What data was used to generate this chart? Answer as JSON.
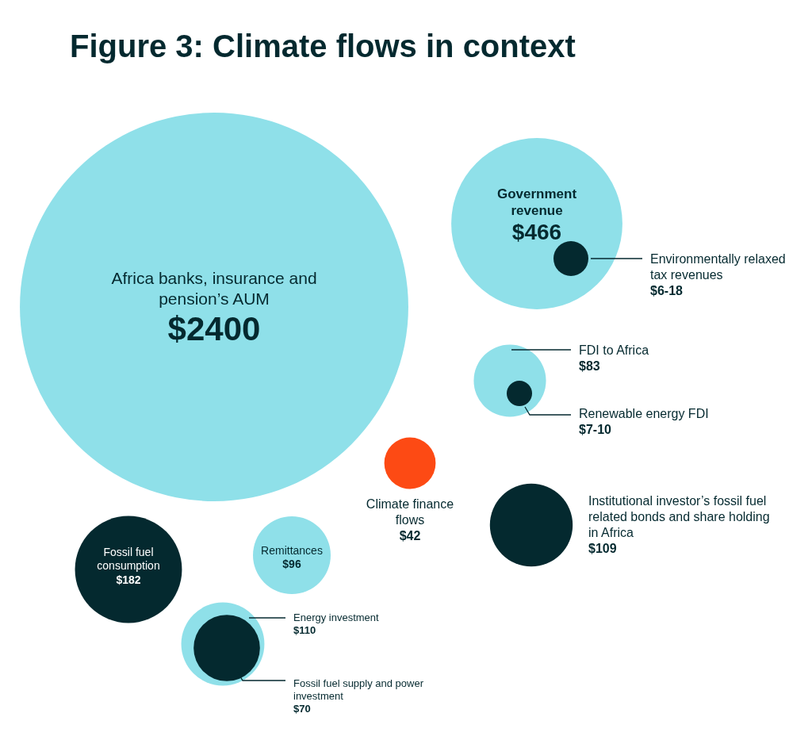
{
  "chart_data": {
    "type": "other",
    "title": "Figure 3: Climate flows in context",
    "categories": [
      "Africa banks, insurance and pension’s AUM",
      "Government revenue",
      "Environmentally relaxed tax revenues",
      "FDI to Africa",
      "Renewable energy FDI",
      "Climate finance flows",
      "Institutional investor’s fossil fuel related bonds and share holding in Africa",
      "Fossil fuel consumption",
      "Remittances",
      "Energy investment",
      "Fossil fuel supply and power investment"
    ],
    "values": [
      2400,
      466,
      null,
      83,
      null,
      42,
      109,
      182,
      96,
      110,
      70
    ],
    "value_labels": [
      "$2400",
      "$466",
      "$6-18",
      "$83",
      "$7-10",
      "$42",
      "$109",
      "$182",
      "$96",
      "$110",
      "$70"
    ],
    "colors": [
      "#8fe0e9",
      "#8fe0e9",
      "#04292f",
      "#8fe0e9",
      "#04292f",
      "#fd4a14",
      "#04292f",
      "#04292f",
      "#8fe0e9",
      "#8fe0e9",
      "#04292f"
    ]
  }
}
